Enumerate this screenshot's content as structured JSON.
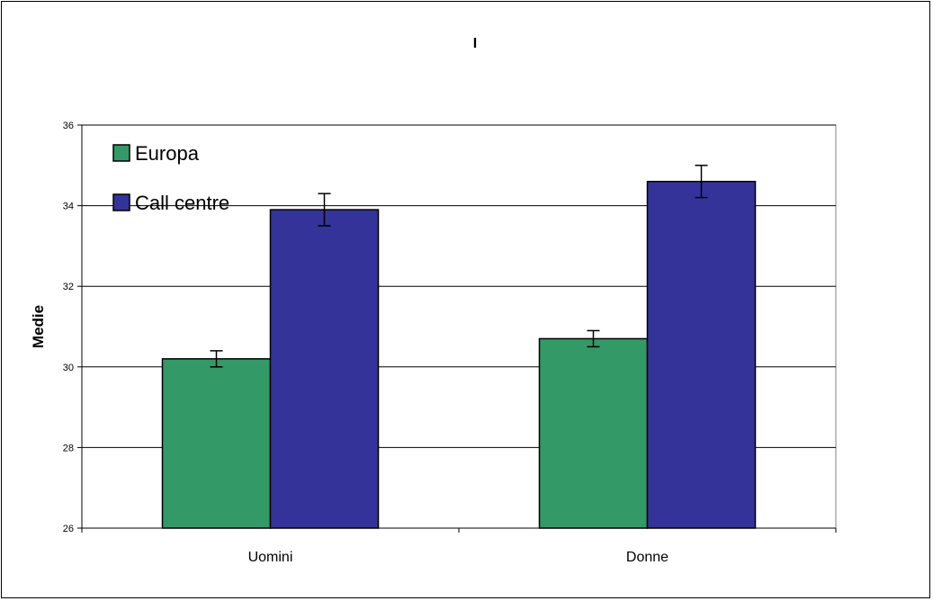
{
  "chart_data": {
    "type": "bar",
    "title": "I",
    "xlabel": "",
    "ylabel": "Medie",
    "categories": [
      "Uomini",
      "Donne"
    ],
    "series": [
      {
        "name": "Europa",
        "color": "#339966",
        "values": [
          30.2,
          30.7
        ],
        "error": [
          0.2,
          0.2
        ]
      },
      {
        "name": "Call centre",
        "color": "#333399",
        "values": [
          33.9,
          34.6
        ],
        "error": [
          0.4,
          0.4
        ]
      }
    ],
    "ylim": [
      26,
      36
    ],
    "yticks": [
      "26",
      "28",
      "30",
      "32",
      "34",
      "36"
    ],
    "grid": true,
    "legend_position": "top-left"
  }
}
